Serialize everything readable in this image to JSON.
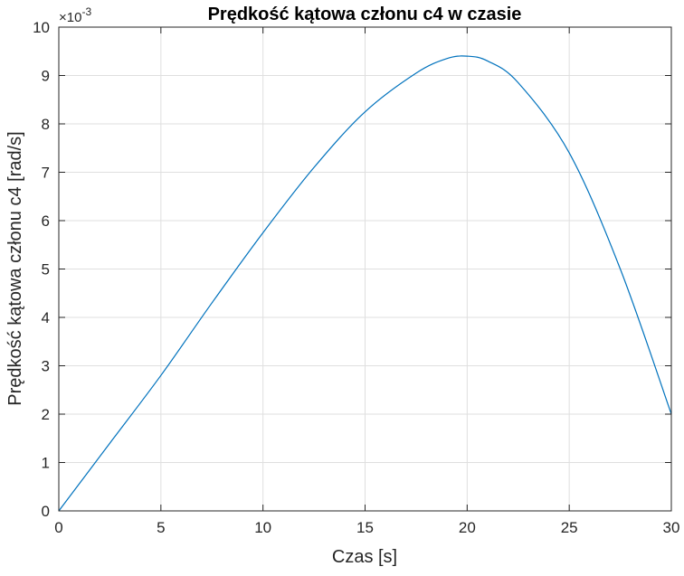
{
  "chart_data": {
    "type": "line",
    "title": "Prędkość kątowa członu c4 w czasie",
    "xlabel": "Czas [s]",
    "ylabel": "Prędkość kątowa członu c4 [rad/s]",
    "xlim": [
      0,
      30
    ],
    "ylim": [
      0,
      10
    ],
    "y_scale_label": {
      "base": "×10",
      "exponent": "-3"
    },
    "xticks": [
      0,
      5,
      10,
      15,
      20,
      25,
      30
    ],
    "xtick_labels": [
      "0",
      "5",
      "10",
      "15",
      "20",
      "25",
      "30"
    ],
    "yticks": [
      0,
      1,
      2,
      3,
      4,
      5,
      6,
      7,
      8,
      9,
      10
    ],
    "ytick_labels": [
      "0",
      "1",
      "2",
      "3",
      "4",
      "5",
      "6",
      "7",
      "8",
      "9",
      "10"
    ],
    "grid": true,
    "box": true,
    "series": [
      {
        "color": "#0072BD",
        "x": [
          0,
          2.5,
          5,
          7.5,
          10,
          12.5,
          15,
          17.5,
          19,
          20,
          21,
          22.5,
          25,
          27.5,
          30
        ],
        "y": [
          0,
          1.4,
          2.8,
          4.3,
          5.75,
          7.1,
          8.25,
          9.05,
          9.35,
          9.4,
          9.3,
          8.85,
          7.4,
          5.0,
          2.0
        ]
      }
    ]
  }
}
